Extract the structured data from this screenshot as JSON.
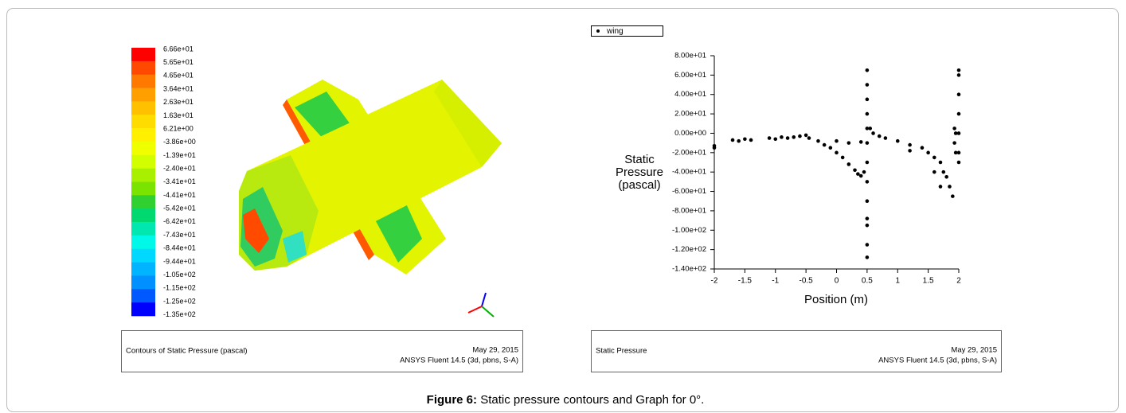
{
  "left_panel": {
    "colorbar": {
      "labels": [
        "6.66e+01",
        "5.65e+01",
        "4.65e+01",
        "3.64e+01",
        "2.63e+01",
        "1.63e+01",
        "6.21e+00",
        "-3.86e+00",
        "-1.39e+01",
        "-2.40e+01",
        "-3.41e+01",
        "-4.41e+01",
        "-5.42e+01",
        "-6.42e+01",
        "-7.43e+01",
        "-8.44e+01",
        "-9.44e+01",
        "-1.05e+02",
        "-1.15e+02",
        "-1.25e+02",
        "-1.35e+02"
      ],
      "colors": [
        "#ff0000",
        "#ff4800",
        "#ff7800",
        "#ffa000",
        "#ffc000",
        "#ffdc00",
        "#fff000",
        "#f0ff00",
        "#d2ff00",
        "#a8f000",
        "#7ae400",
        "#30d030",
        "#00d870",
        "#00e8b0",
        "#00f8e8",
        "#00d8ff",
        "#00b4ff",
        "#0090ff",
        "#0058ff",
        "#0000ff"
      ]
    },
    "caption": {
      "title": "Contours of Static Pressure (pascal)",
      "date": "May 29, 2015",
      "software": "ANSYS Fluent 14.5 (3d, pbns, S-A)"
    }
  },
  "right_caption": {
    "title": "Static Pressure",
    "date": "May 29, 2015",
    "software": "ANSYS Fluent 14.5 (3d, pbns, S-A)"
  },
  "figure_caption": {
    "label": "Figure 6:",
    "text": "Static pressure contours and Graph for 0°."
  },
  "chart_data": {
    "type": "scatter",
    "xlabel": "Position (m)",
    "ylabel": "Static Pressure (pascal)",
    "xlim": [
      -2,
      2
    ],
    "ylim": [
      -140,
      80
    ],
    "xticks": [
      -2,
      -1.5,
      -1,
      -0.5,
      0,
      0.5,
      1,
      1.5,
      2
    ],
    "yticks": [
      {
        "value": 80,
        "label": "8.00e+01"
      },
      {
        "value": 60,
        "label": "6.00e+01"
      },
      {
        "value": 40,
        "label": "4.00e+01"
      },
      {
        "value": 20,
        "label": "2.00e+01"
      },
      {
        "value": 0,
        "label": "0.00e+00"
      },
      {
        "value": -20,
        "label": "-2.00e+01"
      },
      {
        "value": -40,
        "label": "-4.00e+01"
      },
      {
        "value": -60,
        "label": "-6.00e+01"
      },
      {
        "value": -80,
        "label": "-8.00e+01"
      },
      {
        "value": -100,
        "label": "-1.00e+02"
      },
      {
        "value": -120,
        "label": "-1.20e+02"
      },
      {
        "value": -140,
        "label": "-1.40e+02"
      }
    ],
    "legend": "top-left",
    "series": [
      {
        "name": "wing",
        "color": "#000000",
        "x": [
          -2,
          -2,
          -1.7,
          -1.6,
          -1.5,
          -1.4,
          -1.1,
          -1,
          -0.9,
          -0.8,
          -0.7,
          -0.6,
          -0.5,
          -0.45,
          -0.3,
          -0.2,
          -0.1,
          0,
          0.1,
          0.2,
          0.3,
          0.35,
          0.4,
          0.45,
          0.0,
          0.2,
          0.4,
          0.5,
          0.5,
          0.5,
          0.5,
          0.5,
          0.5,
          0.5,
          0.5,
          0.5,
          0.5,
          0.5,
          0.5,
          0.5,
          0.55,
          0.6,
          0.7,
          0.8,
          1.0,
          1.2,
          1.4,
          1.5,
          1.6,
          1.7,
          1.8,
          1.85,
          1.9,
          1.7,
          1.2,
          1.6,
          1.75,
          1.93,
          1.93,
          1.95,
          1.95,
          2,
          2,
          2,
          2,
          2,
          2,
          2
        ],
        "values": [
          -15,
          -13,
          -7,
          -8,
          -6,
          -7,
          -5,
          -6,
          -4,
          -5,
          -4,
          -3,
          -2,
          -5,
          -8,
          -12,
          -15,
          -20,
          -25,
          -32,
          -38,
          -42,
          -44,
          -40,
          -8,
          -10,
          -9,
          65,
          50,
          35,
          20,
          5,
          -10,
          -30,
          -50,
          -70,
          -88,
          -95,
          -115,
          -128,
          5,
          0,
          -3,
          -5,
          -8,
          -12,
          -15,
          -20,
          -25,
          -30,
          -45,
          -55,
          -65,
          -55,
          -18,
          -40,
          -40,
          5,
          -10,
          -20,
          0,
          65,
          60,
          40,
          20,
          0,
          -20,
          -30
        ]
      }
    ]
  }
}
